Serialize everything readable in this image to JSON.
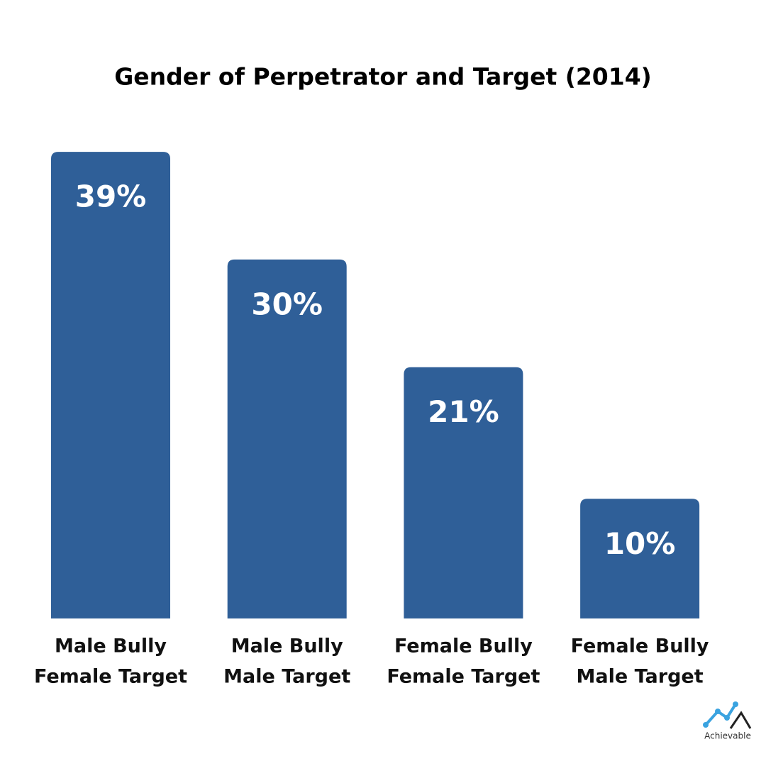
{
  "chart_data": {
    "type": "bar",
    "title": "Gender of Perpetrator and Target (2014)",
    "categories": [
      [
        "Male Bully",
        "Female Target"
      ],
      [
        "Male Bully",
        "Male Target"
      ],
      [
        "Female Bully",
        "Female Target"
      ],
      [
        "Female Bully",
        "Male Target"
      ]
    ],
    "values": [
      39,
      30,
      21,
      10
    ],
    "value_labels": [
      "39%",
      "30%",
      "21%",
      "10%"
    ],
    "color": "#2f5f98"
  },
  "logo": "Achievable"
}
